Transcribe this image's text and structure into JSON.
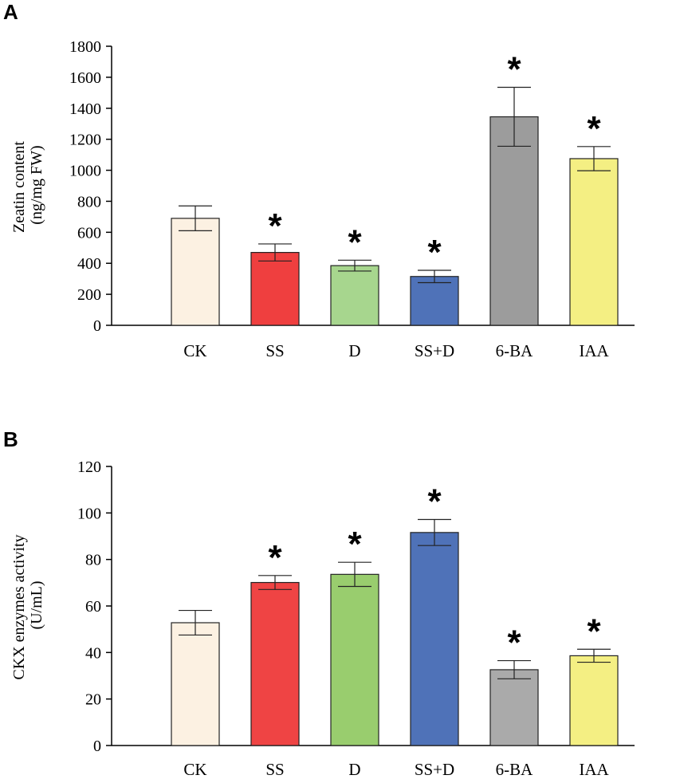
{
  "chart_data": [
    {
      "type": "bar",
      "panel": "A",
      "ylabel_lines": [
        "Zeatin content",
        "(ng/mg FW)"
      ],
      "categories": [
        "CK",
        "SS",
        "D",
        "SS+D",
        "6-BA",
        "IAA"
      ],
      "values": [
        690,
        470,
        385,
        315,
        1345,
        1075
      ],
      "errors": [
        80,
        55,
        35,
        40,
        190,
        78
      ],
      "significant": [
        false,
        true,
        true,
        true,
        true,
        true
      ],
      "significance_marker": "*",
      "colors": [
        "#fcf1e2",
        "#ef3f3f",
        "#a7d68e",
        "#4f72b8",
        "#9c9c9c",
        "#f4ef83"
      ],
      "ylim": [
        0,
        1800
      ],
      "yticks": [
        0,
        200,
        400,
        600,
        800,
        1000,
        1200,
        1400,
        1600,
        1800
      ]
    },
    {
      "type": "bar",
      "panel": "B",
      "ylabel_lines": [
        "CKX enzymes activity",
        "(U/mL)"
      ],
      "categories": [
        "CK",
        "SS",
        "D",
        "SS+D",
        "6-BA",
        "IAA"
      ],
      "values": [
        52.8,
        70.1,
        73.6,
        91.6,
        32.6,
        38.6
      ],
      "errors": [
        5.3,
        3.0,
        5.2,
        5.6,
        3.9,
        2.8
      ],
      "significant": [
        false,
        true,
        true,
        true,
        true,
        true
      ],
      "significance_marker": "*",
      "colors": [
        "#fcf1e2",
        "#ef4444",
        "#99cd6e",
        "#4f72b8",
        "#aaaaaa",
        "#f4ef83"
      ],
      "ylim": [
        0,
        120
      ],
      "yticks": [
        0,
        20,
        40,
        60,
        80,
        100,
        120
      ]
    }
  ]
}
